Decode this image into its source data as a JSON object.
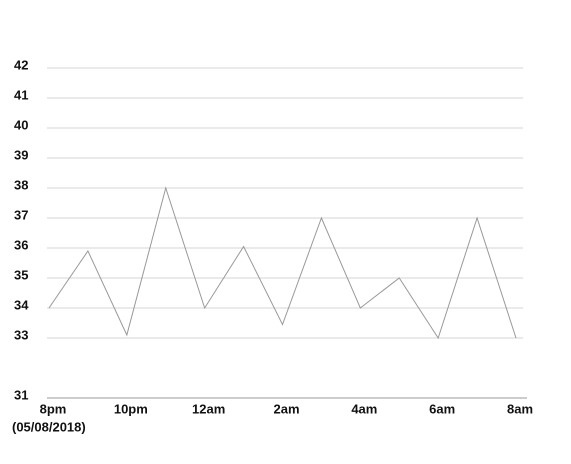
{
  "chart_data": {
    "type": "line",
    "categories": [
      "8pm",
      null,
      "10pm",
      null,
      "12am",
      null,
      "2am",
      null,
      "4am",
      null,
      "6am",
      null,
      "8am"
    ],
    "date_label": "(05/08/2018)",
    "series": [
      {
        "color": "#999999",
        "values": [
          34,
          35.9,
          33.1,
          38,
          34,
          36.05,
          33.45,
          37,
          34,
          35,
          33,
          37,
          33
        ]
      }
    ],
    "ylim": [
      31,
      42
    ],
    "yticks": [
      31,
      33,
      34,
      35,
      36,
      37,
      38,
      39,
      40,
      41,
      42
    ],
    "grid": true
  }
}
